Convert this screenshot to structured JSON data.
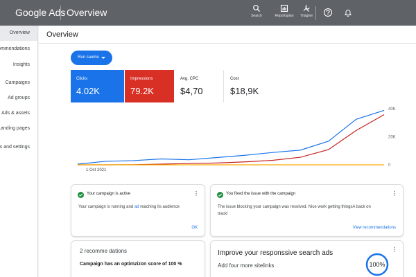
{
  "topbar": {
    "brand": "Google Ads",
    "title": "Overview",
    "tools": [
      {
        "label": "Search",
        "icon": "search-icon"
      },
      {
        "label": "Reportsplan",
        "icon": "reports-icon"
      },
      {
        "label": "Trtagine",
        "icon": "tools-icon"
      }
    ],
    "help_icon": "help-icon",
    "notifications_icon": "bell-icon"
  },
  "sidebar": {
    "items": [
      {
        "label": "Overview"
      },
      {
        "label": "Recommendations"
      },
      {
        "label": "Insights"
      },
      {
        "label": "Campaigns"
      },
      {
        "label": "Ad groups"
      },
      {
        "label": "Ads & assets"
      },
      {
        "label": "Landing pages"
      },
      {
        "label": "Tools and settings"
      }
    ]
  },
  "main": {
    "title": "Overview",
    "run_button": "Run caume"
  },
  "metrics": {
    "clicks": {
      "label": "Clicks",
      "value": "4.02K"
    },
    "impressions": {
      "label": "Impressions",
      "value": "79.2K"
    },
    "cpc": {
      "label": "Avg. CPC",
      "value": "$4,70"
    },
    "cost": {
      "label": "Cost",
      "value": "$18,9K"
    }
  },
  "chart_data": {
    "type": "line",
    "x_label_start": "1 Oct 2021",
    "ylim": [
      0,
      40000
    ],
    "y_ticks": [
      "40K",
      "20K",
      "0"
    ],
    "x": [
      0,
      1,
      2,
      3,
      4,
      5,
      6,
      7,
      8,
      9,
      10,
      11
    ],
    "series": [
      {
        "color": "#1a73e8",
        "values": [
          500,
          2500,
          3000,
          4200,
          3600,
          5200,
          6800,
          8800,
          10500,
          16800,
          32500,
          38800
        ]
      },
      {
        "color": "#c5221f",
        "values": [
          0,
          0,
          100,
          500,
          900,
          1300,
          2100,
          3200,
          5400,
          10800,
          24500,
          35800
        ]
      },
      {
        "color": "#f9ab00",
        "values": [
          0,
          0,
          0,
          0,
          0,
          0,
          0,
          0,
          0,
          0,
          0,
          0
        ]
      }
    ]
  },
  "cards": {
    "c1": {
      "head": "Your campaign is active",
      "body_a": "Your campaign is running and ",
      "body_link": "ad",
      "body_b": " reaching its audience",
      "link": "OK"
    },
    "c2": {
      "head": "You fixed the issue with the campaign",
      "body_1": "The issue blocking your campaign was resolved. Nice work getting thingsA back on",
      "body_2": "track!",
      "link": "View recommendations"
    },
    "c3": {
      "title": "2 recomme dations",
      "body": "Campaign has an optimzizon score of 100 %"
    },
    "c4": {
      "title": "Improve your responssive search ads",
      "body": "Add four more sitelinks",
      "score": "100%"
    }
  }
}
